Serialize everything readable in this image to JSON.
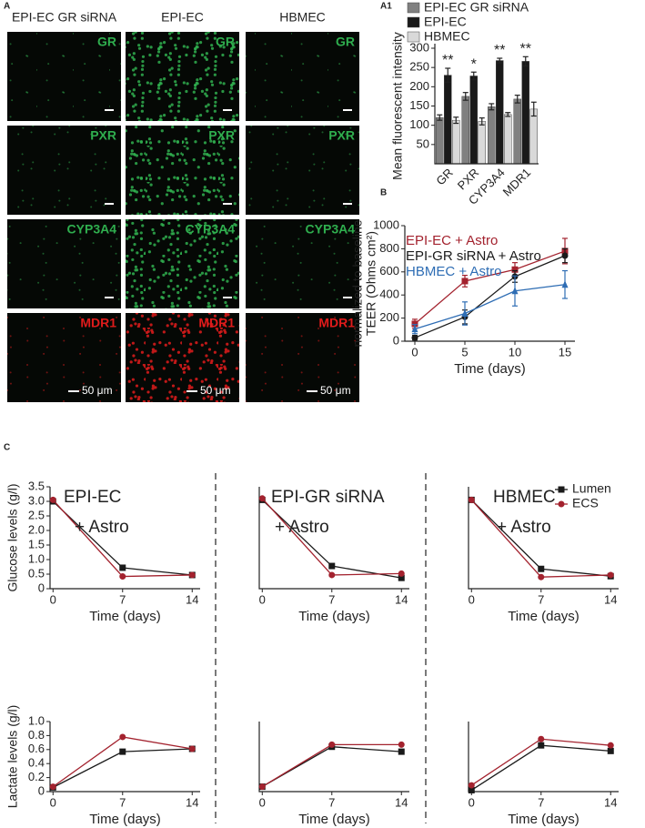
{
  "panel_labels": [
    "A",
    "A1",
    "B",
    "C"
  ],
  "microscopy": {
    "columns": [
      "EPI-EC GR siRNA",
      "EPI-EC",
      "HBMEC"
    ],
    "stains": [
      {
        "name": "GR",
        "color": "#2fae4e"
      },
      {
        "name": "PXR",
        "color": "#2fae4e"
      },
      {
        "name": "CYP3A4",
        "color": "#2fae4e"
      },
      {
        "name": "MDR1",
        "color": "#e01b1b"
      }
    ],
    "scale_bar": "50 μm"
  },
  "chart_data": [
    {
      "type": "bar",
      "ylabel": "Mean fluorescent intensity",
      "categories": [
        "GR",
        "PXR",
        "CYP3A4",
        "MDR1"
      ],
      "series": [
        {
          "name": "EPI-EC GR siRNA",
          "color": "#808080",
          "values": [
            120,
            175,
            148,
            168
          ],
          "errors": [
            7,
            10,
            8,
            10
          ]
        },
        {
          "name": "EPI-EC",
          "color": "#1a1a1a",
          "values": [
            230,
            228,
            268,
            266
          ],
          "errors": [
            18,
            10,
            6,
            12
          ]
        },
        {
          "name": "HBMEC",
          "color": "#d9d9d9",
          "values": [
            113,
            110,
            128,
            142
          ],
          "errors": [
            8,
            9,
            5,
            18
          ]
        }
      ],
      "annotations": [
        "**",
        "*",
        "**",
        "**"
      ],
      "ylim": [
        0,
        300
      ],
      "yticks": [
        50,
        100,
        150,
        200,
        250,
        300
      ],
      "legend": "upper left"
    },
    {
      "type": "line",
      "ylabel": [
        "TEER (Ohms cm²)",
        "normalized to baseline"
      ],
      "xlabel": "Time (days)",
      "x": [
        0,
        5,
        10,
        15
      ],
      "xlim": [
        -1,
        16
      ],
      "xticks": [
        0,
        5,
        10,
        15
      ],
      "ylim": [
        0,
        1000
      ],
      "yticks": [
        0,
        200,
        400,
        600,
        800,
        1000
      ],
      "legend": "upper left",
      "series": [
        {
          "name": "EPI-EC + Astro",
          "color": "#a3222e",
          "marker": "square",
          "values": [
            150,
            520,
            620,
            780
          ],
          "errors": [
            40,
            50,
            60,
            110
          ]
        },
        {
          "name": "EPI-GR siRNA + Astro",
          "color": "#1a1a1a",
          "marker": "circle",
          "values": [
            30,
            210,
            560,
            740
          ],
          "errors": [
            20,
            60,
            50,
            60
          ]
        },
        {
          "name": "HBMEC + Astro",
          "color": "#2e6db4",
          "marker": "triangle",
          "values": [
            105,
            240,
            435,
            490
          ],
          "errors": [
            40,
            100,
            130,
            120
          ]
        }
      ]
    },
    {
      "type": "line",
      "title": "EPI-EC",
      "subtitle": "+ Astro",
      "ylabel": "Glucose levels (g/l)",
      "xlabel": "Time (days)",
      "x": [
        0,
        7,
        14
      ],
      "xlim": [
        -0.3,
        14.8
      ],
      "xticks": [
        0,
        7,
        14
      ],
      "ylim": [
        0,
        3.5
      ],
      "yticks": [
        0,
        0.5,
        {
          "value": 1,
          "label": "1.0"
        },
        1.5,
        {
          "value": 2,
          "label": "2.0"
        },
        2.5,
        {
          "value": 3,
          "label": "3.0"
        },
        3.5
      ],
      "series": [
        {
          "color": "#1a1a1a",
          "marker": "square",
          "values": [
            3.0,
            0.72,
            0.47
          ]
        },
        {
          "color": "#a3222e",
          "marker": "circle",
          "values": [
            3.05,
            0.42,
            0.47
          ]
        }
      ]
    },
    {
      "type": "line",
      "title": "EPI-GR siRNA",
      "subtitle": "+ Astro",
      "xlabel": "Time (days)",
      "x": [
        0,
        7,
        14
      ],
      "xlim": [
        -0.3,
        14.8
      ],
      "xticks": [
        0,
        7,
        14
      ],
      "ylim": [
        0,
        3.5
      ],
      "series": [
        {
          "color": "#1a1a1a",
          "marker": "square",
          "values": [
            3.05,
            0.78,
            0.37
          ]
        },
        {
          "color": "#a3222e",
          "marker": "circle",
          "values": [
            3.1,
            0.47,
            0.52
          ]
        }
      ]
    },
    {
      "type": "line",
      "title": "HBMEC",
      "subtitle": "+ Astro",
      "xlabel": "Time (days)",
      "x": [
        0,
        7,
        14
      ],
      "xlim": [
        -0.3,
        14.8
      ],
      "xticks": [
        0,
        7,
        14
      ],
      "ylim": [
        0,
        3.5
      ],
      "legend": "upper right",
      "series": [
        {
          "name": "Lumen",
          "color": "#1a1a1a",
          "marker": "square",
          "values": [
            3.05,
            0.68,
            0.43
          ]
        },
        {
          "name": "ECS",
          "color": "#a3222e",
          "marker": "circle",
          "values": [
            3.05,
            0.4,
            0.47
          ]
        }
      ]
    },
    {
      "type": "line",
      "ylabel": "Lactate levels (g/l)",
      "xlabel": "Time (days)",
      "x": [
        0,
        7,
        14
      ],
      "xlim": [
        -0.3,
        14.8
      ],
      "xticks": [
        0,
        7,
        14
      ],
      "ylim": [
        0,
        1
      ],
      "yticks": [
        0,
        0.2,
        0.4,
        0.6,
        0.8,
        {
          "value": 1,
          "label": "1.0"
        }
      ],
      "series": [
        {
          "color": "#1a1a1a",
          "marker": "square",
          "values": [
            0.06,
            0.57,
            0.61
          ]
        },
        {
          "color": "#a3222e",
          "marker": "circle",
          "values": [
            0.07,
            0.78,
            0.61
          ]
        }
      ]
    },
    {
      "type": "line",
      "xlabel": "Time (days)",
      "x": [
        0,
        7,
        14
      ],
      "xlim": [
        -0.3,
        14.8
      ],
      "xticks": [
        0,
        7,
        14
      ],
      "ylim": [
        0,
        1
      ],
      "series": [
        {
          "color": "#1a1a1a",
          "marker": "square",
          "values": [
            0.07,
            0.64,
            0.57
          ]
        },
        {
          "color": "#a3222e",
          "marker": "circle",
          "values": [
            0.07,
            0.67,
            0.67
          ]
        }
      ]
    },
    {
      "type": "line",
      "xlabel": "Time (days)",
      "x": [
        0,
        7,
        14
      ],
      "xlim": [
        -0.3,
        14.8
      ],
      "xticks": [
        0,
        7,
        14
      ],
      "ylim": [
        0,
        1
      ],
      "series": [
        {
          "color": "#1a1a1a",
          "marker": "square",
          "values": [
            0.02,
            0.66,
            0.58
          ]
        },
        {
          "color": "#a3222e",
          "marker": "circle",
          "values": [
            0.09,
            0.75,
            0.66
          ]
        }
      ]
    }
  ]
}
